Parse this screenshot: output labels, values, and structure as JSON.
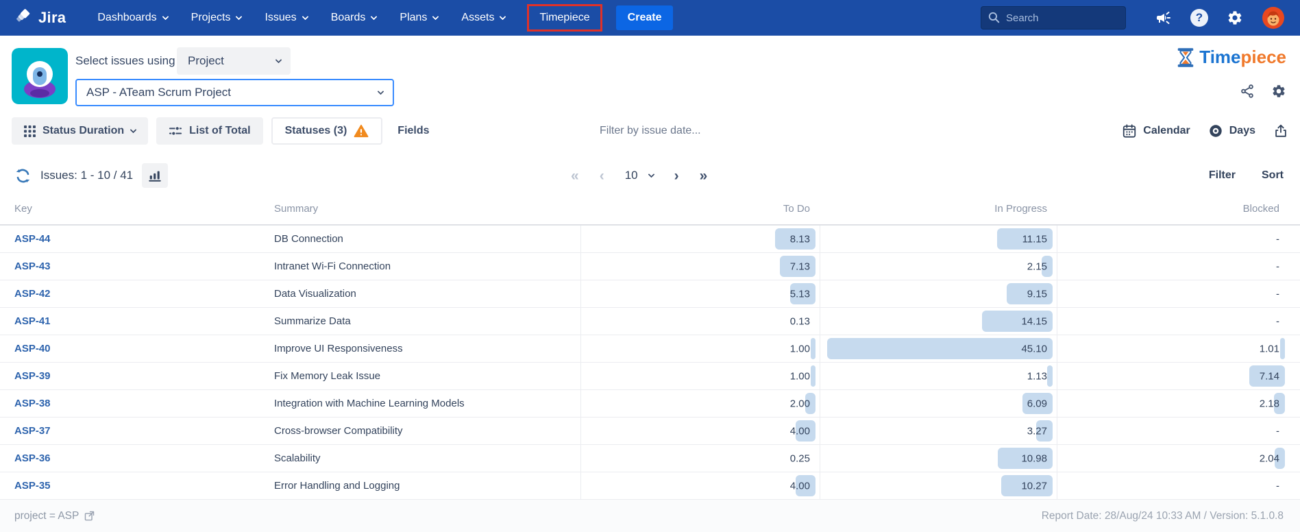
{
  "navbar": {
    "logo_text": "Jira",
    "menu_items": [
      {
        "label": "Dashboards",
        "chevron": true,
        "highlighted": false
      },
      {
        "label": "Projects",
        "chevron": true,
        "highlighted": false
      },
      {
        "label": "Issues",
        "chevron": true,
        "highlighted": false
      },
      {
        "label": "Boards",
        "chevron": true,
        "highlighted": false
      },
      {
        "label": "Plans",
        "chevron": true,
        "highlighted": false
      },
      {
        "label": "Assets",
        "chevron": true,
        "highlighted": false
      },
      {
        "label": "Timepiece",
        "chevron": false,
        "highlighted": true
      }
    ],
    "create_label": "Create",
    "search_placeholder": "Search",
    "help_glyph": "?"
  },
  "header": {
    "select_issues_label": "Select issues using",
    "mode_dropdown_value": "Project",
    "project_dropdown_value": "ASP - ATeam Scrum Project",
    "brand_part1": "Time",
    "brand_part2": "piece"
  },
  "toolbar": {
    "status_duration_label": "Status Duration",
    "list_of_total_label": "List of Total",
    "statuses_label": "Statuses (3)",
    "fields_label": "Fields",
    "date_filter_placeholder": "Filter by issue date...",
    "calendar_label": "Calendar",
    "days_label": "Days"
  },
  "issues_bar": {
    "count_label": "Issues: 1 - 10 / 41",
    "filter_label": "Filter",
    "sort_label": "Sort"
  },
  "pagination": {
    "first": "«",
    "prev": "‹",
    "page_size": "10",
    "next": "›",
    "last": "»"
  },
  "table": {
    "columns": [
      "Key",
      "Summary",
      "To Do",
      "In Progress",
      "Blocked"
    ],
    "bar_color": "#C6DAEE",
    "rows": [
      {
        "key": "ASP-44",
        "summary": "DB Connection",
        "to_do": "8.13",
        "in_progress": "11.15",
        "blocked": "-"
      },
      {
        "key": "ASP-43",
        "summary": "Intranet Wi-Fi Connection",
        "to_do": "7.13",
        "in_progress": "2.15",
        "blocked": "-"
      },
      {
        "key": "ASP-42",
        "summary": "Data Visualization",
        "to_do": "5.13",
        "in_progress": "9.15",
        "blocked": "-"
      },
      {
        "key": "ASP-41",
        "summary": "Summarize Data",
        "to_do": "0.13",
        "in_progress": "14.15",
        "blocked": "-"
      },
      {
        "key": "ASP-40",
        "summary": "Improve UI Responsiveness",
        "to_do": "1.00",
        "in_progress": "45.10",
        "blocked": "1.01"
      },
      {
        "key": "ASP-39",
        "summary": "Fix Memory Leak Issue",
        "to_do": "1.00",
        "in_progress": "1.13",
        "blocked": "7.14"
      },
      {
        "key": "ASP-38",
        "summary": "Integration with Machine Learning Models",
        "to_do": "2.00",
        "in_progress": "6.09",
        "blocked": "2.18"
      },
      {
        "key": "ASP-37",
        "summary": "Cross-browser Compatibility",
        "to_do": "4.00",
        "in_progress": "3.27",
        "blocked": "-"
      },
      {
        "key": "ASP-36",
        "summary": "Scalability",
        "to_do": "0.25",
        "in_progress": "10.98",
        "blocked": "2.04"
      },
      {
        "key": "ASP-35",
        "summary": "Error Handling and Logging",
        "to_do": "4.00",
        "in_progress": "10.27",
        "blocked": "-"
      }
    ]
  },
  "footer": {
    "query_label": "project = ASP",
    "report_label": "Report Date: 28/Aug/24 10:33 AM / Version: 5.1.0.8"
  }
}
